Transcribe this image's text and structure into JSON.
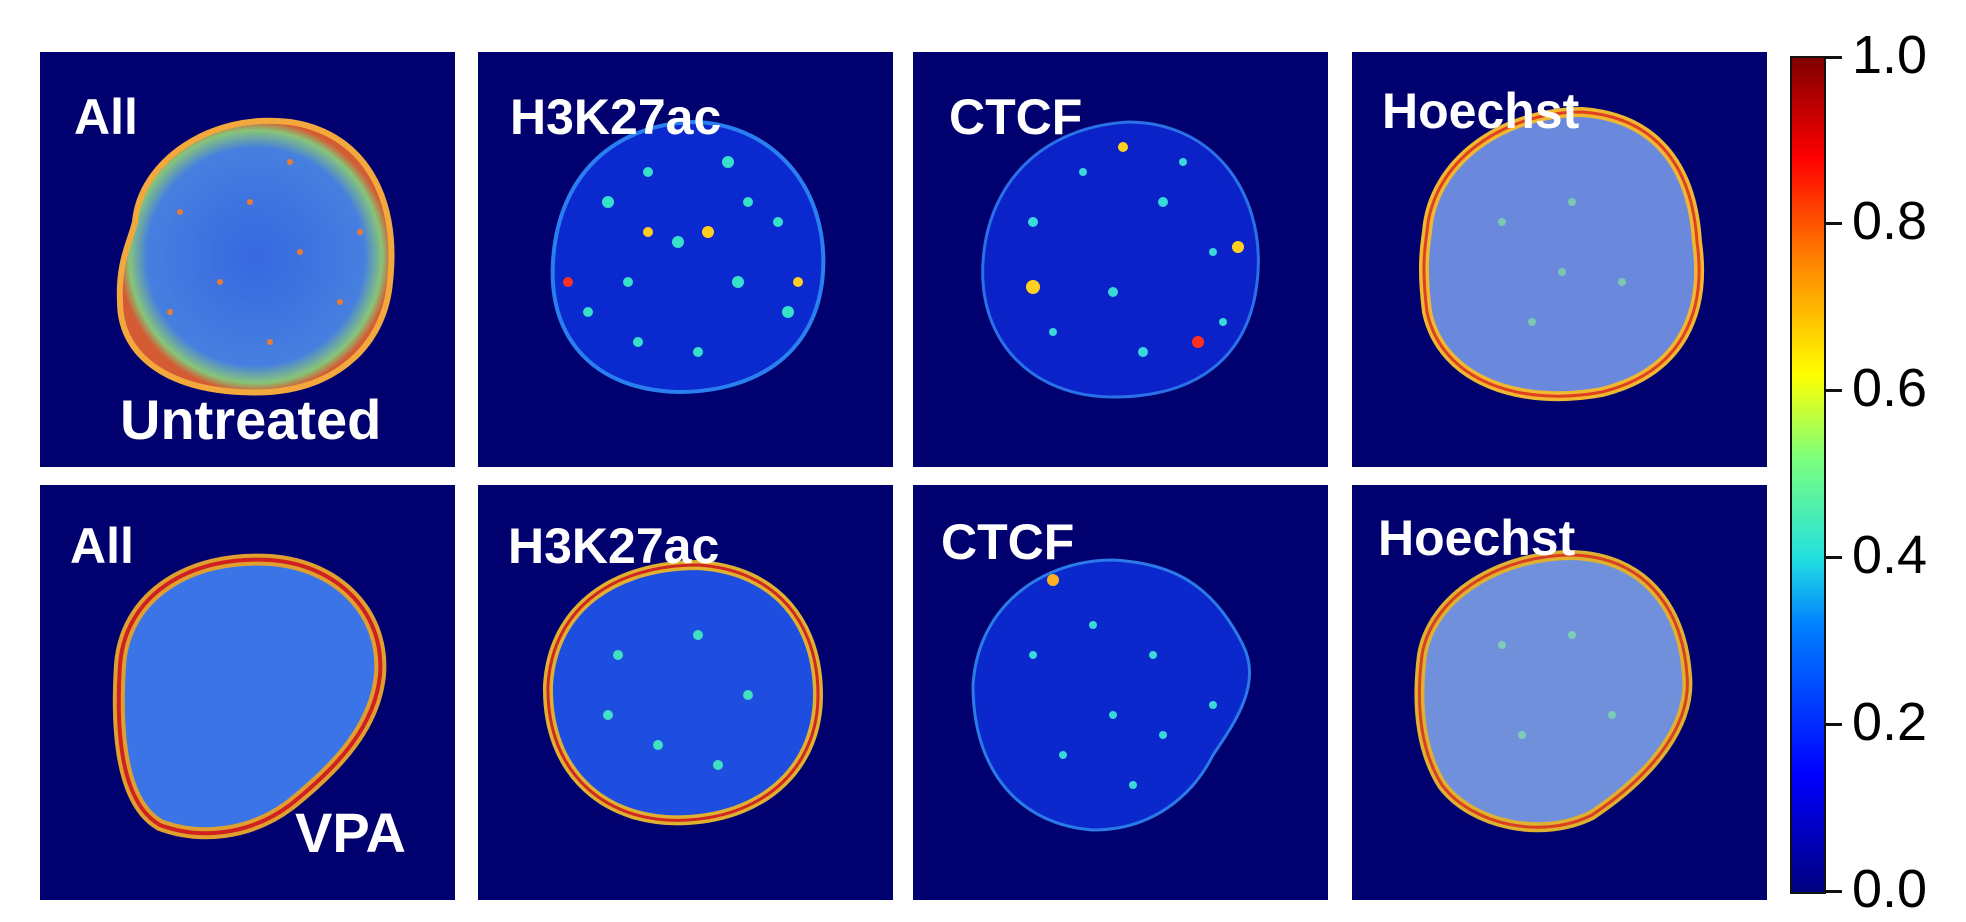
{
  "panels": [
    {
      "row": "untreated",
      "channel": "All",
      "label": "All",
      "condition_label": "Untreated"
    },
    {
      "row": "untreated",
      "channel": "H3K27ac",
      "label": "H3K27ac"
    },
    {
      "row": "untreated",
      "channel": "CTCF",
      "label": "CTCF"
    },
    {
      "row": "untreated",
      "channel": "Hoechst",
      "label": "Hoechst"
    },
    {
      "row": "vpa",
      "channel": "All",
      "label": "All",
      "condition_label": "VPA"
    },
    {
      "row": "vpa",
      "channel": "H3K27ac",
      "label": "H3K27ac"
    },
    {
      "row": "vpa",
      "channel": "CTCF",
      "label": "CTCF"
    },
    {
      "row": "vpa",
      "channel": "Hoechst",
      "label": "Hoechst"
    }
  ],
  "colorbar": {
    "colormap": "jet",
    "min": 0.0,
    "max": 1.0,
    "ticks": [
      "0.0",
      "0.2",
      "0.4",
      "0.6",
      "0.8",
      "1.0"
    ]
  },
  "colors": {
    "background": "#00006e",
    "low": "#00007f",
    "mid": "#22e0e0",
    "high": "#7f0000"
  }
}
